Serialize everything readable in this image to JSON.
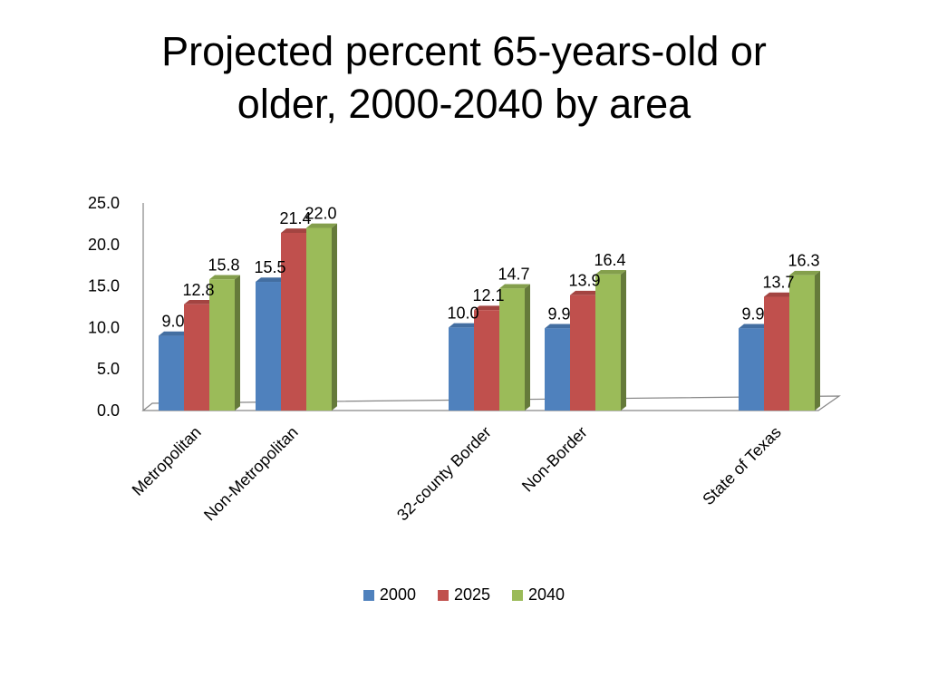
{
  "title": {
    "line1": "Projected percent 65-years-old or",
    "line2": "older, 2000-2040 by area"
  },
  "chart_data": {
    "type": "bar",
    "variant": "3d-clustered-column",
    "categories": [
      "Metropolitan",
      "Non-Metropolitan",
      "32-county Border",
      "Non-Border",
      "State of Texas"
    ],
    "series": [
      {
        "name": "2000",
        "color": "#4F81BD",
        "values": [
          9.0,
          15.5,
          10.0,
          9.9,
          9.9
        ]
      },
      {
        "name": "2025",
        "color": "#C0504D",
        "values": [
          12.8,
          21.4,
          12.1,
          13.9,
          13.7
        ]
      },
      {
        "name": "2040",
        "color": "#9BBB59",
        "values": [
          15.8,
          22.0,
          14.7,
          16.4,
          16.3
        ]
      }
    ],
    "data_labels": [
      [
        "9.0",
        "15.5",
        "10.0",
        "9.9",
        "9.9"
      ],
      [
        "12.8",
        "21.4",
        "12.1",
        "13.9",
        "13.7"
      ],
      [
        "15.8",
        "22.0",
        "14.7",
        "16.4",
        "16.3"
      ]
    ],
    "y_ticks": [
      "0.0",
      "5.0",
      "10.0",
      "15.0",
      "20.0",
      "25.0"
    ],
    "ylim": [
      0,
      25
    ],
    "grid": false,
    "legend": "bottom"
  }
}
